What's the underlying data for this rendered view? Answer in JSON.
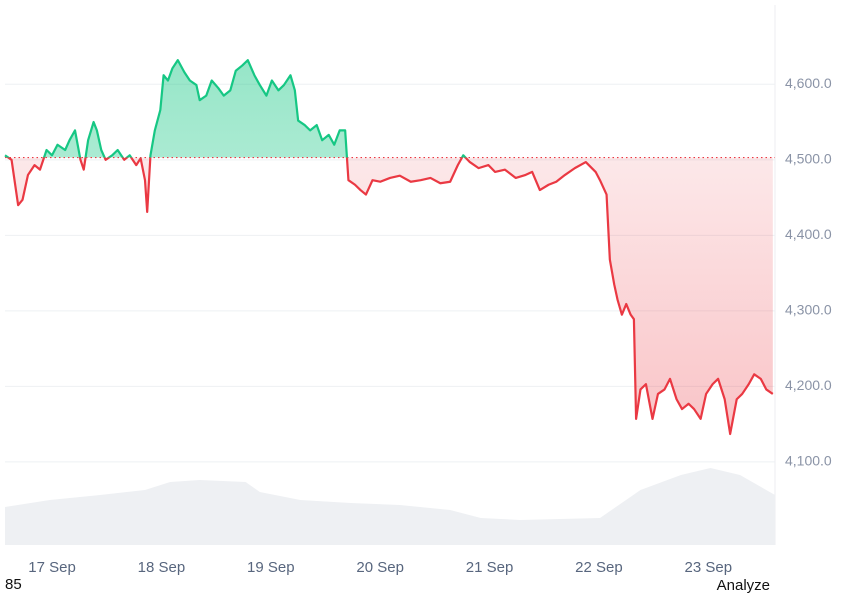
{
  "chart_data": {
    "type": "line",
    "x": [
      16.57,
      16.63,
      16.69,
      16.73,
      16.78,
      16.84,
      16.89,
      16.95,
      17.0,
      17.05,
      17.12,
      17.16,
      17.21,
      17.26,
      17.29,
      17.33,
      17.38,
      17.41,
      17.45,
      17.49,
      17.55,
      17.6,
      17.66,
      17.71,
      17.77,
      17.81,
      17.85,
      17.87,
      17.9,
      17.94,
      17.99,
      18.02,
      18.06,
      18.1,
      18.15,
      18.21,
      18.26,
      18.32,
      18.35,
      18.41,
      18.46,
      18.52,
      18.57,
      18.63,
      18.68,
      18.74,
      18.79,
      18.85,
      18.9,
      18.96,
      19.01,
      19.07,
      19.12,
      19.18,
      19.22,
      19.25,
      19.31,
      19.36,
      19.42,
      19.47,
      19.53,
      19.58,
      19.63,
      19.68,
      19.71,
      19.77,
      19.82,
      19.87,
      19.93,
      20.0,
      20.09,
      20.18,
      20.28,
      20.37,
      20.46,
      20.55,
      20.64,
      20.71,
      20.76,
      20.82,
      20.9,
      20.99,
      21.05,
      21.14,
      21.24,
      21.33,
      21.39,
      21.46,
      21.54,
      21.61,
      21.69,
      21.78,
      21.88,
      21.97,
      22.01,
      22.07,
      22.1,
      22.14,
      22.17,
      22.21,
      22.25,
      22.29,
      22.32,
      22.34,
      22.38,
      22.43,
      22.49,
      22.54,
      22.6,
      22.65,
      22.71,
      22.76,
      22.82,
      22.87,
      22.93,
      22.98,
      23.04,
      23.09,
      23.15,
      23.2,
      23.26,
      23.31,
      23.37,
      23.42,
      23.48,
      23.53,
      23.59
    ],
    "series": [
      {
        "color": "#ea3943",
        "color_above": "#16c784",
        "values": [
          4506,
          4500,
          4440,
          4447,
          4480,
          4493,
          4487,
          4513,
          4506,
          4520,
          4513,
          4526,
          4539,
          4500,
          4487,
          4526,
          4550,
          4539,
          4513,
          4500,
          4506,
          4513,
          4500,
          4506,
          4493,
          4502,
          4473,
          4431,
          4506,
          4539,
          4566,
          4612,
          4605,
          4621,
          4632,
          4616,
          4605,
          4599,
          4579,
          4585,
          4605,
          4595,
          4585,
          4592,
          4618,
          4625,
          4632,
          4612,
          4599,
          4585,
          4605,
          4592,
          4599,
          4612,
          4592,
          4552,
          4546,
          4539,
          4546,
          4526,
          4533,
          4520,
          4539,
          4539,
          4473,
          4467,
          4460,
          4454,
          4473,
          4471,
          4476,
          4479,
          4471,
          4473,
          4476,
          4469,
          4471,
          4493,
          4506,
          4497,
          4489,
          4493,
          4484,
          4487,
          4476,
          4480,
          4484,
          4460,
          4467,
          4471,
          4480,
          4489,
          4497,
          4484,
          4473,
          4454,
          4368,
          4335,
          4315,
          4295,
          4309,
          4295,
          4289,
          4157,
          4196,
          4203,
          4157,
          4190,
          4196,
          4210,
          4183,
          4170,
          4177,
          4170,
          4157,
          4190,
          4203,
          4210,
          4183,
          4137,
          4183,
          4190,
          4203,
          4216,
          4210,
          4196,
          4190
        ]
      }
    ],
    "baseline": 4503,
    "volume": {
      "color": "#eef0f3",
      "x": [
        16.57,
        16.98,
        17.44,
        17.85,
        18.08,
        18.35,
        18.77,
        18.9,
        19.27,
        19.73,
        20.18,
        20.64,
        20.92,
        21.28,
        22.01,
        22.38,
        22.75,
        23.02,
        23.29,
        23.61
      ],
      "values": [
        38,
        45,
        50,
        55,
        63,
        65,
        63,
        53,
        45,
        42,
        40,
        35,
        27,
        25,
        27,
        55,
        70,
        77,
        70,
        50
      ]
    },
    "xlim": [
      16.57,
      23.61
    ],
    "xticks": [
      {
        "value": 17,
        "label": "17 Sep"
      },
      {
        "value": 18,
        "label": "18 Sep"
      },
      {
        "value": 19,
        "label": "19 Sep"
      },
      {
        "value": 20,
        "label": "20 Sep"
      },
      {
        "value": 21,
        "label": "21 Sep"
      },
      {
        "value": 22,
        "label": "22 Sep"
      },
      {
        "value": 23,
        "label": "23 Sep"
      }
    ],
    "ylim": [
      3990,
      4705
    ],
    "yticks": [
      {
        "value": 4100,
        "label": "4,100.0"
      },
      {
        "value": 4200,
        "label": "4,200.0"
      },
      {
        "value": 4300,
        "label": "4,300.0"
      },
      {
        "value": 4400,
        "label": "4,400.0"
      },
      {
        "value": 4500,
        "label": "4,500.0"
      },
      {
        "value": 4600,
        "label": "4,600.0"
      }
    ],
    "grid": true,
    "footer_left": "85",
    "footer_right": "Analyze"
  }
}
